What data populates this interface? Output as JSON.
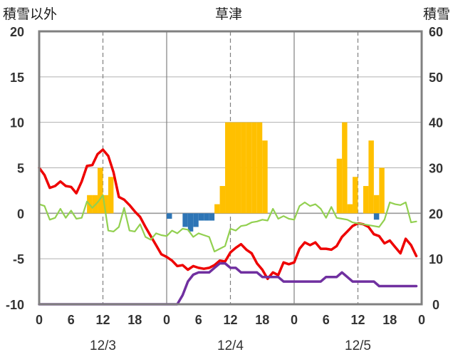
{
  "chart_data": {
    "type": "bar+line",
    "title": "草津",
    "left_axis": {
      "label": "積雪以外",
      "min": -10,
      "max": 20,
      "ticks": [
        20,
        15,
        10,
        5,
        0,
        -5,
        -10
      ]
    },
    "right_axis": {
      "label": "積雪",
      "min": 0,
      "max": 60,
      "ticks": [
        60,
        50,
        40,
        30,
        20,
        10,
        0
      ]
    },
    "x_axis": {
      "hour_ticks": [
        "0",
        "6",
        "12",
        "18",
        "0",
        "6",
        "12",
        "18",
        "0",
        "6",
        "12",
        "18",
        "0"
      ],
      "day_labels": [
        "12/3",
        "12/4",
        "12/5"
      ],
      "hours_range": [
        0,
        72
      ]
    },
    "grid": true,
    "colors": {
      "orange": "#FFC000",
      "blue": "#2E75B6",
      "red": "#EE0000",
      "green": "#92D050",
      "purple": "#7030A0",
      "frame": "#808080"
    },
    "bars_orange": [
      {
        "h": 9.5,
        "v": 2
      },
      {
        "h": 10.5,
        "v": 2
      },
      {
        "h": 11.5,
        "v": 5
      },
      {
        "h": 12.5,
        "v": 2
      },
      {
        "h": 13.5,
        "v": 4
      },
      {
        "h": 33.5,
        "v": 1
      },
      {
        "h": 34.5,
        "v": 3
      },
      {
        "h": 35.5,
        "v": 10
      },
      {
        "h": 36.5,
        "v": 10
      },
      {
        "h": 37.5,
        "v": 10
      },
      {
        "h": 38.5,
        "v": 10
      },
      {
        "h": 39.5,
        "v": 10
      },
      {
        "h": 40.5,
        "v": 10
      },
      {
        "h": 41.5,
        "v": 10
      },
      {
        "h": 42.5,
        "v": 8
      },
      {
        "h": 56.5,
        "v": 6
      },
      {
        "h": 57.5,
        "v": 10
      },
      {
        "h": 58.5,
        "v": 1
      },
      {
        "h": 59.5,
        "v": 4
      },
      {
        "h": 61.5,
        "v": 3
      },
      {
        "h": 62.5,
        "v": 8
      },
      {
        "h": 63.5,
        "v": 2
      },
      {
        "h": 64.5,
        "v": 5
      }
    ],
    "bars_blue": [
      {
        "h": 24.5,
        "v": -0.6
      },
      {
        "h": 27.5,
        "v": -1.5
      },
      {
        "h": 28.5,
        "v": -2
      },
      {
        "h": 29.5,
        "v": -1.5
      },
      {
        "h": 30.5,
        "v": -0.8
      },
      {
        "h": 31.5,
        "v": -0.8
      },
      {
        "h": 32.5,
        "v": -0.8
      },
      {
        "h": 63.5,
        "v": -0.7
      }
    ],
    "series": [
      {
        "color": "#EE0000",
        "axis": "left",
        "width": 3.5,
        "points": [
          [
            0,
            5
          ],
          [
            1,
            4.2
          ],
          [
            2,
            2.8
          ],
          [
            3,
            3
          ],
          [
            4,
            3.5
          ],
          [
            5,
            3
          ],
          [
            6,
            2.9
          ],
          [
            7,
            2.2
          ],
          [
            8,
            3.5
          ],
          [
            9,
            5.2
          ],
          [
            10,
            5.3
          ],
          [
            11,
            6.5
          ],
          [
            12,
            7
          ],
          [
            13,
            6.3
          ],
          [
            14,
            4.5
          ],
          [
            15,
            1.8
          ],
          [
            16,
            1.5
          ],
          [
            17,
            0.9
          ],
          [
            18,
            0.2
          ],
          [
            19,
            -0.4
          ],
          [
            20,
            -1.5
          ],
          [
            21,
            -2.5
          ],
          [
            22,
            -3.5
          ],
          [
            23,
            -4.5
          ],
          [
            24,
            -4.8
          ],
          [
            25,
            -5.2
          ],
          [
            26,
            -5.8
          ],
          [
            27,
            -5.7
          ],
          [
            28,
            -6.2
          ],
          [
            29,
            -5.8
          ],
          [
            30,
            -6
          ],
          [
            31,
            -6.1
          ],
          [
            32,
            -6
          ],
          [
            33,
            -5.7
          ],
          [
            34,
            -5.2
          ],
          [
            35,
            -5.3
          ],
          [
            36,
            -4.3
          ],
          [
            37,
            -3.8
          ],
          [
            38,
            -3.4
          ],
          [
            39,
            -4
          ],
          [
            40,
            -4.4
          ],
          [
            41,
            -5.5
          ],
          [
            42,
            -6.2
          ],
          [
            43,
            -7.2
          ],
          [
            44,
            -6.5
          ],
          [
            45,
            -6.8
          ],
          [
            46,
            -5.4
          ],
          [
            47,
            -5.6
          ],
          [
            48,
            -5.4
          ],
          [
            49,
            -3.9
          ],
          [
            50,
            -3.2
          ],
          [
            51,
            -3.5
          ],
          [
            52,
            -3.2
          ],
          [
            53,
            -3.9
          ],
          [
            54,
            -3.9
          ],
          [
            55,
            -4
          ],
          [
            56,
            -3.6
          ],
          [
            57,
            -2.6
          ],
          [
            58,
            -2
          ],
          [
            59,
            -1.4
          ],
          [
            60,
            -1.1
          ],
          [
            61,
            -1.2
          ],
          [
            62,
            -1.5
          ],
          [
            63,
            -2.3
          ],
          [
            64,
            -2.5
          ],
          [
            65,
            -3.3
          ],
          [
            66,
            -3
          ],
          [
            67,
            -3.7
          ],
          [
            68,
            -4.4
          ],
          [
            69,
            -2.8
          ],
          [
            70,
            -3.5
          ],
          [
            71,
            -4.7
          ]
        ]
      },
      {
        "color": "#92D050",
        "axis": "left",
        "width": 2.2,
        "points": [
          [
            0,
            1
          ],
          [
            1,
            0.8
          ],
          [
            2,
            -0.7
          ],
          [
            3,
            -0.5
          ],
          [
            4,
            0.5
          ],
          [
            5,
            -0.5
          ],
          [
            6,
            0.3
          ],
          [
            7,
            -0.6
          ],
          [
            8,
            -0.5
          ],
          [
            9,
            1.3
          ],
          [
            10,
            0.6
          ],
          [
            11,
            1.2
          ],
          [
            12,
            2
          ],
          [
            13,
            -1.9
          ],
          [
            14,
            -2
          ],
          [
            15,
            -1.5
          ],
          [
            16,
            0.6
          ],
          [
            17,
            -1.9
          ],
          [
            18,
            -2
          ],
          [
            19,
            -1.2
          ],
          [
            20,
            -2.6
          ],
          [
            21,
            -2.9
          ],
          [
            22,
            -2.2
          ],
          [
            23,
            -2.4
          ],
          [
            24,
            -2.5
          ],
          [
            25,
            -1.9
          ],
          [
            26,
            -2.2
          ],
          [
            27,
            -1.7
          ],
          [
            28,
            -1.8
          ],
          [
            29,
            -2.6
          ],
          [
            30,
            -2.2
          ],
          [
            31,
            -2.4
          ],
          [
            32,
            -2.6
          ],
          [
            33,
            -4.2
          ],
          [
            34,
            -3.9
          ],
          [
            35,
            -3.6
          ],
          [
            36,
            -1.7
          ],
          [
            37,
            -1.9
          ],
          [
            38,
            -1.4
          ],
          [
            39,
            -1.3
          ],
          [
            40,
            -1
          ],
          [
            41,
            -0.9
          ],
          [
            42,
            -0.7
          ],
          [
            43,
            -0.8
          ],
          [
            44,
            0.5
          ],
          [
            45,
            -0.6
          ],
          [
            46,
            -0.3
          ],
          [
            47,
            -0.6
          ],
          [
            48,
            -0.7
          ],
          [
            49,
            0.8
          ],
          [
            50,
            1.2
          ],
          [
            51,
            0.8
          ],
          [
            52,
            1
          ],
          [
            53,
            0.5
          ],
          [
            54,
            -0.5
          ],
          [
            55,
            0.7
          ],
          [
            56,
            -0.5
          ],
          [
            57,
            -0.6
          ],
          [
            58,
            -0.7
          ],
          [
            59,
            -1
          ],
          [
            60,
            -1.1
          ],
          [
            61,
            -1.2
          ],
          [
            62,
            -1.3
          ],
          [
            63,
            -1.4
          ],
          [
            64,
            -1.5
          ],
          [
            65,
            -0.7
          ],
          [
            66,
            1.2
          ],
          [
            67,
            1
          ],
          [
            68,
            0.9
          ],
          [
            69,
            1.2
          ],
          [
            70,
            -1
          ],
          [
            71,
            -0.9
          ]
        ]
      },
      {
        "color": "#7030A0",
        "axis": "right",
        "width": 3.5,
        "points": [
          [
            0,
            0
          ],
          [
            25,
            0
          ],
          [
            26,
            0
          ],
          [
            27,
            2
          ],
          [
            28,
            5
          ],
          [
            29,
            6.5
          ],
          [
            30,
            7
          ],
          [
            31,
            7
          ],
          [
            32,
            7
          ],
          [
            33,
            8
          ],
          [
            34,
            9
          ],
          [
            35,
            9
          ],
          [
            36,
            8
          ],
          [
            37,
            8
          ],
          [
            38,
            7
          ],
          [
            39,
            7
          ],
          [
            40,
            7
          ],
          [
            41,
            7
          ],
          [
            42,
            6
          ],
          [
            43,
            6
          ],
          [
            44,
            6
          ],
          [
            45,
            6
          ],
          [
            46,
            5
          ],
          [
            47,
            5
          ],
          [
            48,
            5
          ],
          [
            49,
            5
          ],
          [
            50,
            5
          ],
          [
            51,
            5
          ],
          [
            52,
            5
          ],
          [
            53,
            5
          ],
          [
            54,
            6
          ],
          [
            55,
            6
          ],
          [
            56,
            6
          ],
          [
            57,
            7
          ],
          [
            58,
            6
          ],
          [
            59,
            5
          ],
          [
            60,
            5
          ],
          [
            61,
            5
          ],
          [
            62,
            5
          ],
          [
            63,
            5
          ],
          [
            64,
            4
          ],
          [
            65,
            4
          ],
          [
            66,
            4
          ],
          [
            67,
            4
          ],
          [
            68,
            4
          ],
          [
            69,
            4
          ],
          [
            70,
            4
          ],
          [
            71,
            4
          ]
        ]
      }
    ]
  }
}
